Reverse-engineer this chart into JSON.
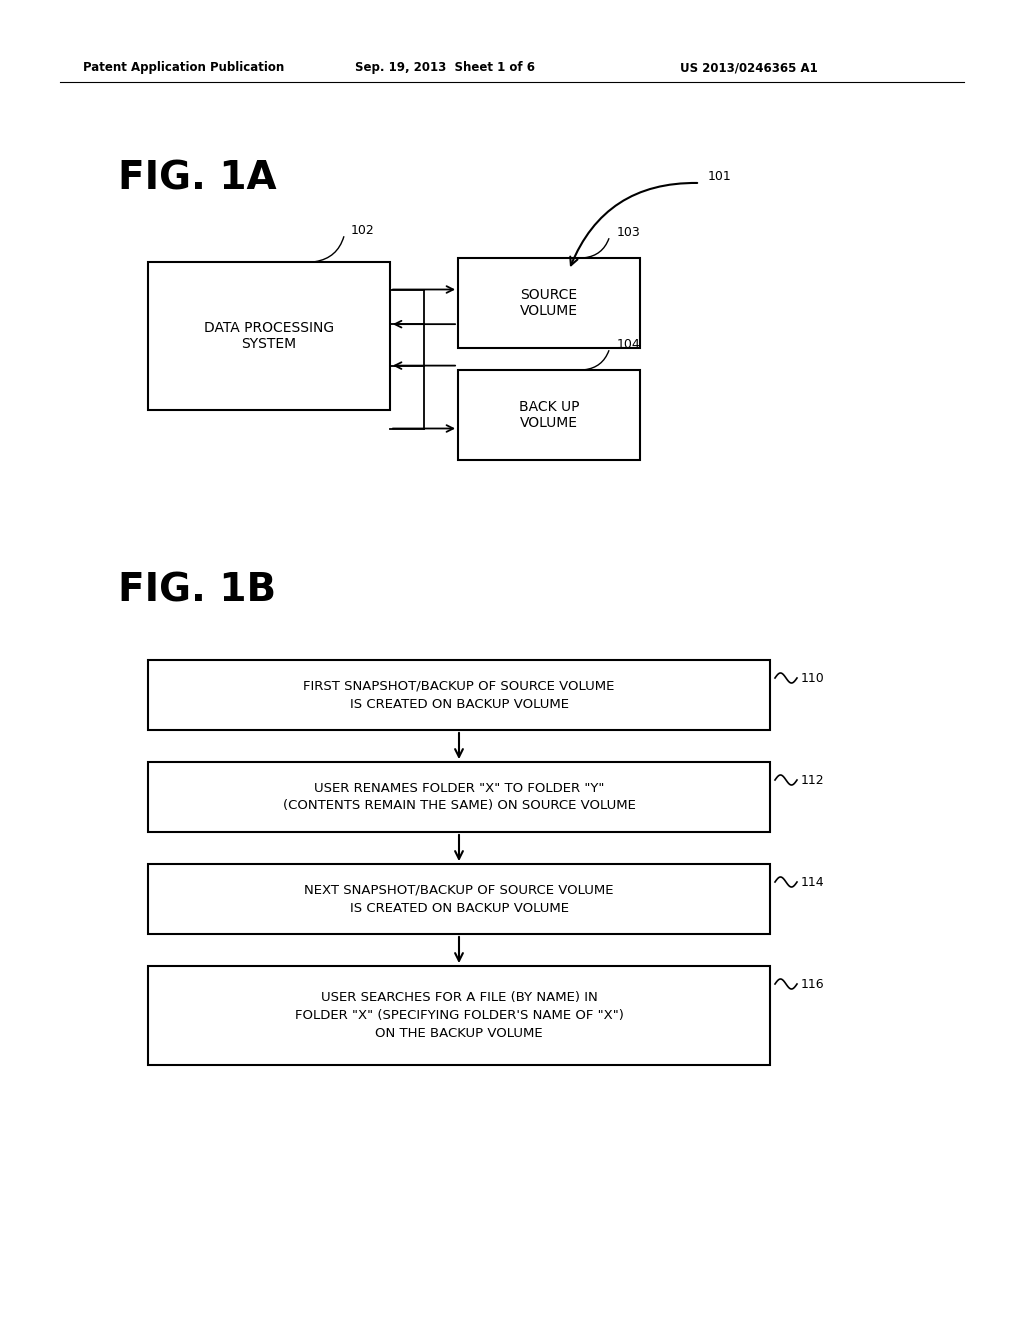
{
  "bg_color": "#ffffff",
  "header_left": "Patent Application Publication",
  "header_mid": "Sep. 19, 2013  Sheet 1 of 6",
  "header_right": "US 2013/0246365 A1",
  "fig1a_label": "FIG. 1A",
  "fig1b_label": "FIG. 1B",
  "box_dps_label": "DATA PROCESSING\nSYSTEM",
  "box_dps_ref": "102",
  "box_sv_label": "SOURCE\nVOLUME",
  "box_sv_ref": "103",
  "box_bv_label": "BACK UP\nVOLUME",
  "box_bv_ref": "104",
  "ref_101": "101",
  "flow_boxes": [
    {
      "label": "FIRST SNAPSHOT/BACKUP OF SOURCE VOLUME\nIS CREATED ON BACKUP VOLUME",
      "ref": "110"
    },
    {
      "label": "USER RENAMES FOLDER \"X\" TO FOLDER \"Y\"\n(CONTENTS REMAIN THE SAME) ON SOURCE VOLUME",
      "ref": "112"
    },
    {
      "label": "NEXT SNAPSHOT/BACKUP OF SOURCE VOLUME\nIS CREATED ON BACKUP VOLUME",
      "ref": "114"
    },
    {
      "label": "USER SEARCHES FOR A FILE (BY NAME) IN\nFOLDER \"X\" (SPECIFYING FOLDER'S NAME OF \"X\")\nON THE BACKUP VOLUME",
      "ref": "116"
    }
  ]
}
